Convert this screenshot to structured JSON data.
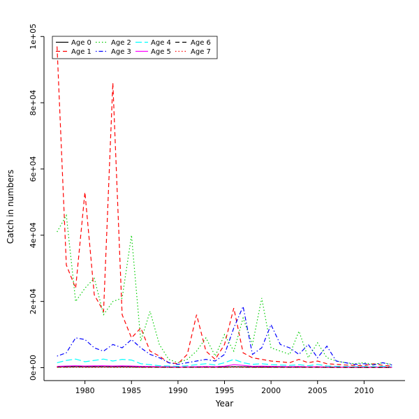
{
  "figure_background": "#ffffff",
  "chart_data": {
    "type": "line",
    "title": "",
    "xlabel": "Year",
    "ylabel": "Catch in numbers",
    "grid": false,
    "legend_position": "top-left",
    "xlim": [
      1975.6,
      2014.4
    ],
    "ylim": [
      -3900,
      100900
    ],
    "x_ticks": [
      1980,
      1985,
      1990,
      1995,
      2000,
      2005,
      2010
    ],
    "y_ticks": [
      0,
      20000,
      40000,
      60000,
      80000,
      100000
    ],
    "y_tick_labels": [
      "0e+00",
      "2e+04",
      "4e+04",
      "6e+04",
      "8e+04",
      "1e+05"
    ],
    "years": [
      1977,
      1978,
      1979,
      1980,
      1981,
      1982,
      1983,
      1984,
      1985,
      1986,
      1987,
      1988,
      1989,
      1990,
      1991,
      1992,
      1993,
      1994,
      1995,
      1996,
      1997,
      1998,
      1999,
      2000,
      2001,
      2002,
      2003,
      2004,
      2005,
      2006,
      2007,
      2008,
      2009,
      2010,
      2011,
      2012,
      2013
    ],
    "series": [
      {
        "name": "Age 0",
        "color": "#000000",
        "linestyle": "solid",
        "values": [
          300,
          250,
          280,
          260,
          240,
          250,
          260,
          240,
          230,
          220,
          210,
          200,
          190,
          180,
          190,
          200,
          210,
          200,
          220,
          250,
          230,
          210,
          200,
          190,
          180,
          170,
          180,
          170,
          160,
          150,
          140,
          130,
          120,
          110,
          120,
          110,
          100
        ]
      },
      {
        "name": "Age 1",
        "color": "#ff0000",
        "linestyle": "dashed",
        "values": [
          97000,
          31000,
          24000,
          53000,
          22000,
          17000,
          86000,
          16000,
          9000,
          12000,
          5000,
          3500,
          1500,
          1200,
          4000,
          16000,
          5000,
          2500,
          7000,
          18000,
          4500,
          3000,
          2500,
          2000,
          1800,
          1500,
          2500,
          1500,
          2000,
          1200,
          1000,
          800,
          700,
          600,
          1200,
          700,
          500
        ]
      },
      {
        "name": "Age 2",
        "color": "#00cd00",
        "linestyle": "dotted",
        "values": [
          41000,
          46000,
          20000,
          24000,
          27000,
          16000,
          20000,
          21000,
          40000,
          8000,
          17000,
          7000,
          2500,
          1500,
          2500,
          5000,
          9000,
          3500,
          10000,
          5000,
          15000,
          7000,
          21000,
          6000,
          5000,
          4000,
          11000,
          3000,
          7500,
          3000,
          2000,
          1500,
          1200,
          1500,
          1000,
          1500,
          1000
        ]
      },
      {
        "name": "Age 3",
        "color": "#0000ff",
        "linestyle": "dashdot",
        "values": [
          3500,
          4500,
          9000,
          8500,
          6000,
          5000,
          7000,
          6000,
          8500,
          6000,
          4000,
          3000,
          1500,
          1000,
          1500,
          2000,
          2500,
          2000,
          4000,
          12000,
          18500,
          4000,
          6000,
          13000,
          7000,
          6000,
          4000,
          7000,
          3000,
          6500,
          2000,
          1500,
          1000,
          1200,
          800,
          1500,
          800
        ]
      },
      {
        "name": "Age 4",
        "color": "#00ffff",
        "linestyle": "longdash",
        "values": [
          1500,
          2200,
          2600,
          1800,
          2200,
          2600,
          2000,
          2500,
          2300,
          1200,
          900,
          600,
          500,
          400,
          600,
          900,
          1200,
          800,
          1500,
          2500,
          1500,
          1000,
          1200,
          900,
          800,
          700,
          900,
          600,
          1000,
          500,
          400,
          350,
          300,
          350,
          300,
          400,
          300
        ]
      },
      {
        "name": "Age 5",
        "color": "#ff00ff",
        "linestyle": "solid",
        "values": [
          400,
          500,
          600,
          500,
          550,
          600,
          500,
          550,
          500,
          400,
          350,
          300,
          250,
          200,
          250,
          300,
          350,
          300,
          450,
          900,
          700,
          400,
          450,
          400,
          350,
          300,
          350,
          250,
          300,
          200,
          180,
          160,
          150,
          140,
          150,
          140,
          130
        ]
      },
      {
        "name": "Age 6",
        "color": "#000000",
        "linestyle": "dashed",
        "values": [
          200,
          220,
          250,
          220,
          230,
          240,
          220,
          230,
          220,
          180,
          160,
          140,
          120,
          110,
          120,
          140,
          150,
          140,
          170,
          250,
          200,
          150,
          160,
          150,
          140,
          130,
          140,
          120,
          130,
          110,
          100,
          90,
          85,
          80,
          85,
          80,
          75
        ]
      },
      {
        "name": "Age 7",
        "color": "#ff0000",
        "linestyle": "dotted",
        "values": [
          100,
          110,
          120,
          110,
          115,
          120,
          110,
          115,
          110,
          90,
          80,
          70,
          60,
          55,
          60,
          70,
          75,
          70,
          85,
          120,
          100,
          75,
          80,
          75,
          70,
          65,
          70,
          60,
          65,
          55,
          50,
          45,
          42,
          40,
          42,
          40,
          38
        ]
      }
    ]
  }
}
